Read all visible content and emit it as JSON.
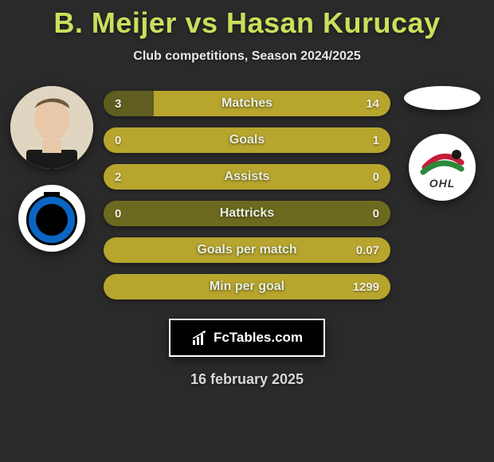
{
  "title": "B. Meijer vs Hasan Kurucay",
  "subtitle": "Club competitions, Season 2024/2025",
  "date": "16 february 2025",
  "branding_text": "FcTables.com",
  "colors": {
    "background": "#2a2a2a",
    "title": "#c9e05b",
    "bar_track": "#6b6a1f",
    "bar_highlight": "#b7a52e",
    "bar_neutral": "#5f5e20",
    "text_light": "#e8eee0",
    "value_text": "#f2efe0"
  },
  "left_player": {
    "name": "B. Meijer",
    "club_label": "Club Brugge"
  },
  "right_player": {
    "name": "Hasan Kurucay",
    "club_label": "OHL"
  },
  "ohl_label": "OHL",
  "stats": [
    {
      "label": "Matches",
      "left_value": "3",
      "right_value": "14",
      "left_num": 3,
      "right_num": 14,
      "left_pct": 17.6,
      "right_pct": 82.4,
      "left_fill": "#5f5e20",
      "right_fill": "#b7a52e"
    },
    {
      "label": "Goals",
      "left_value": "0",
      "right_value": "1",
      "left_num": 0,
      "right_num": 1,
      "left_pct": 0,
      "right_pct": 100,
      "left_fill": "#5f5e20",
      "right_fill": "#b7a52e"
    },
    {
      "label": "Assists",
      "left_value": "2",
      "right_value": "0",
      "left_num": 2,
      "right_num": 0,
      "left_pct": 100,
      "right_pct": 0,
      "left_fill": "#b7a52e",
      "right_fill": "#5f5e20"
    },
    {
      "label": "Hattricks",
      "left_value": "0",
      "right_value": "0",
      "left_num": 0,
      "right_num": 0,
      "left_pct": 50,
      "right_pct": 50,
      "left_fill": "#6b6a1f",
      "right_fill": "#6b6a1f"
    },
    {
      "label": "Goals per match",
      "left_value": "",
      "right_value": "0.07",
      "left_num": 0,
      "right_num": 0.07,
      "left_pct": 0,
      "right_pct": 100,
      "left_fill": "#5f5e20",
      "right_fill": "#b7a52e"
    },
    {
      "label": "Min per goal",
      "left_value": "",
      "right_value": "1299",
      "left_num": 0,
      "right_num": 1299,
      "left_pct": 0,
      "right_pct": 100,
      "left_fill": "#5f5e20",
      "right_fill": "#b7a52e"
    }
  ]
}
